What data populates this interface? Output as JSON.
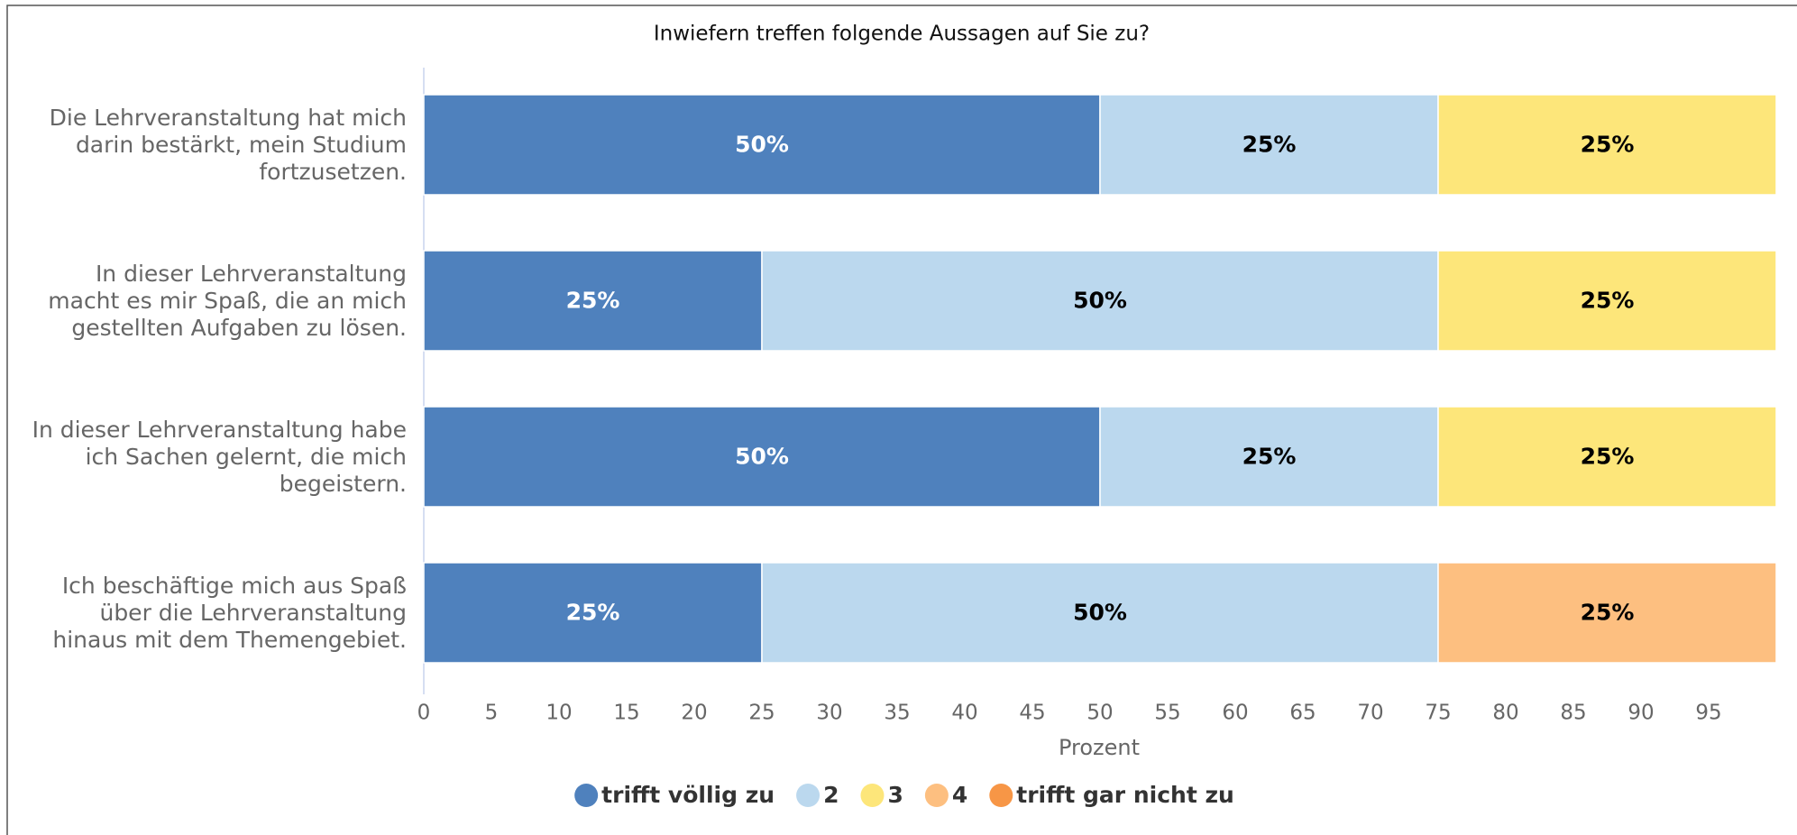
{
  "chart_data": {
    "type": "stacked_barh",
    "title": "Inwiefern treffen folgende Aussagen auf Sie zu?",
    "xlabel": "Prozent",
    "categories": [
      "Die Lehrveranstaltung hat mich\ndarin bestärkt, mein Studium\nfortzusetzen.",
      "In dieser Lehrveranstaltung\nmacht es mir Spaß, die an mich\ngestellten Aufgaben zu lösen.",
      "In dieser Lehrveranstaltung habe\nich Sachen gelernt, die mich\nbegeistern.",
      "Ich beschäftige mich aus Spaß\nüber die Lehrveranstaltung\nhinaus mit dem Themengebiet."
    ],
    "series": [
      {
        "name": "trifft völlig zu",
        "color": "#4f81bd",
        "values": [
          50,
          25,
          50,
          25
        ],
        "value_labels": [
          "50%",
          "25%",
          "50%",
          "25%"
        ]
      },
      {
        "name": "2",
        "color": "#bbd8ee",
        "values": [
          25,
          50,
          25,
          50
        ],
        "value_labels": [
          "25%",
          "50%",
          "25%",
          "50%"
        ]
      },
      {
        "name": "3",
        "color": "#fde67a",
        "values": [
          25,
          25,
          25,
          0
        ],
        "value_labels": [
          "25%",
          "25%",
          "25%",
          null
        ]
      },
      {
        "name": "4",
        "color": "#fdbf80",
        "values": [
          0,
          0,
          0,
          25
        ],
        "value_labels": [
          null,
          null,
          null,
          "25%"
        ]
      },
      {
        "name": "trifft gar nicht zu",
        "color": "#f79646",
        "values": [
          0,
          0,
          0,
          0
        ],
        "value_labels": [
          null,
          null,
          null,
          null
        ]
      }
    ],
    "xlim": [
      0,
      100
    ],
    "xticks": [
      0,
      5,
      10,
      15,
      20,
      25,
      30,
      35,
      40,
      45,
      50,
      55,
      60,
      65,
      70,
      75,
      80,
      85,
      90,
      95
    ],
    "legend": "bottom"
  }
}
